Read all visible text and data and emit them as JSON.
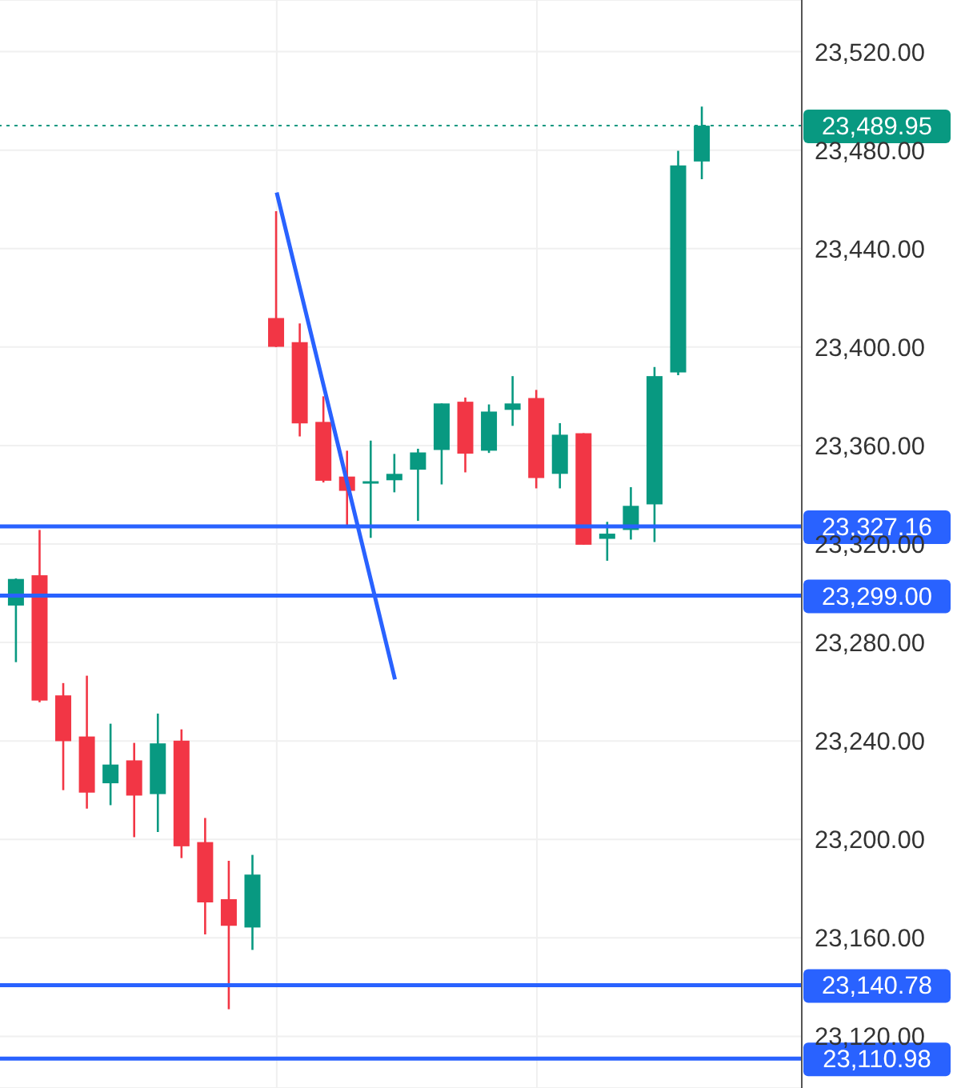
{
  "chart_data": {
    "type": "candlestick",
    "categories": [
      null,
      null,
      null,
      null,
      null,
      null,
      null,
      null,
      null,
      null,
      null,
      null,
      null,
      null,
      null,
      null,
      null,
      null,
      null,
      null,
      null,
      null,
      null,
      null,
      null,
      null,
      null,
      null,
      null,
      null
    ],
    "ohlc": [
      [
        23295,
        23306,
        23272,
        23305.8
      ],
      [
        23307.3,
        23325.7,
        23255.7,
        23256.4
      ],
      [
        23258.5,
        23263.5,
        23220,
        23239.9
      ],
      [
        23241.8,
        23266.5,
        23212.5,
        23219
      ],
      [
        23222.8,
        23247,
        23213.9,
        23230.4
      ],
      [
        23232.1,
        23239.2,
        23200.9,
        23217.8
      ],
      [
        23218.4,
        23251.1,
        23203,
        23239
      ],
      [
        23240.1,
        23244.7,
        23192.4,
        23197.2
      ],
      [
        23198.9,
        23208.7,
        23161.4,
        23174.4
      ],
      [
        23175.7,
        23191.3,
        23131,
        23164.9
      ],
      [
        23164.2,
        23193.7,
        23155.1,
        23185.7
      ],
      [
        23411.8,
        23455.2,
        23400,
        23400.1
      ],
      [
        23402,
        23409.6,
        23363.7,
        23369
      ],
      [
        23369.6,
        23380,
        23345,
        23345.7
      ],
      [
        23347.4,
        23357.9,
        23326.8,
        23341.6
      ],
      [
        23344.8,
        23362,
        23322.5,
        23345.5
      ],
      [
        23345.9,
        23356.6,
        23341,
        23348.5
      ],
      [
        23350.2,
        23358.7,
        23329.4,
        23357.2
      ],
      [
        23358.2,
        23377.1,
        23344.2,
        23377.1
      ],
      [
        23377.8,
        23379.5,
        23349.1,
        23356.7
      ],
      [
        23357.9,
        23376.7,
        23357,
        23373.8
      ],
      [
        23374.5,
        23388.2,
        23368,
        23377.1
      ],
      [
        23379.3,
        23382.6,
        23342.6,
        23346.8
      ],
      [
        23348.5,
        23369.1,
        23342.6,
        23364.4
      ],
      [
        23365,
        23365,
        23319.7,
        23319.7
      ],
      [
        23322.1,
        23329,
        23313.2,
        23324.2
      ],
      [
        23325.7,
        23343.1,
        23321.8,
        23335.5
      ],
      [
        23336.1,
        23391.9,
        23320.8,
        23388.2
      ],
      [
        23389.7,
        23479.7,
        23388.6,
        23473.8
      ],
      [
        23475.4,
        23497.7,
        23468.2,
        23489.95
      ]
    ],
    "series": [
      {
        "type": "line",
        "color": "#2962ff",
        "values": [
          null,
          null,
          null,
          null,
          null,
          null,
          null,
          null,
          null,
          null,
          null,
          23462.8,
          23423.2,
          23383.7,
          23344.1,
          23304.6,
          23265,
          null,
          null,
          null,
          null,
          null,
          null,
          null,
          null,
          null,
          null,
          null,
          null,
          null
        ]
      }
    ],
    "ylim": [
      23099,
      23541
    ],
    "yticks": [
      {
        "value": 23120,
        "label": "23,120.00"
      },
      {
        "value": 23160,
        "label": "23,160.00"
      },
      {
        "value": 23200,
        "label": "23,200.00"
      },
      {
        "value": 23240,
        "label": "23,240.00"
      },
      {
        "value": 23280,
        "label": "23,280.00"
      },
      {
        "value": 23320,
        "label": "23,320.00"
      },
      {
        "value": 23360,
        "label": "23,360.00"
      },
      {
        "value": 23400,
        "label": "23,400.00"
      },
      {
        "value": 23440,
        "label": "23,440.00"
      },
      {
        "value": 23480,
        "label": "23,480.00"
      },
      {
        "value": 23520,
        "label": "23,520.00"
      }
    ],
    "ref_lines": [
      {
        "axis": "y",
        "value": 23489.95,
        "label": "23,489.95",
        "color": "#089981",
        "line_style": "dotted"
      },
      {
        "axis": "y",
        "value": 23327.16,
        "label": "23,327.16",
        "color": "#2962ff"
      },
      {
        "axis": "y",
        "value": 23299,
        "label": "23,299.00",
        "color": "#2962ff"
      },
      {
        "axis": "y",
        "value": 23140.78,
        "label": "23,140.78",
        "color": "#2962ff"
      },
      {
        "axis": "y",
        "value": 23110.98,
        "label": "23,110.98",
        "color": "#2962ff"
      }
    ],
    "grid": true,
    "legend": false,
    "tick_labels": "y"
  }
}
